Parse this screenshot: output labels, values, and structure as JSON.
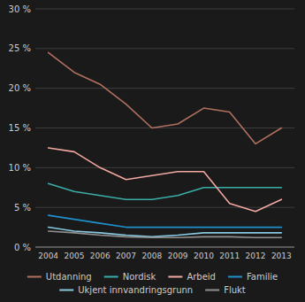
{
  "chart_data": {
    "type": "line",
    "x": [
      2004,
      2005,
      2006,
      2007,
      2008,
      2009,
      2010,
      2011,
      2012,
      2013
    ],
    "xlim": [
      2003.5,
      2013.5
    ],
    "xticks": [
      2004,
      2005,
      2006,
      2007,
      2008,
      2009,
      2010,
      2011,
      2012,
      2013
    ],
    "ylim": [
      0,
      30
    ],
    "yticks": [
      {
        "value": 0,
        "label": "0 %"
      },
      {
        "value": 5,
        "label": "5 %"
      },
      {
        "value": 10,
        "label": "10 %"
      },
      {
        "value": 15,
        "label": "15 %"
      },
      {
        "value": 20,
        "label": "20 %"
      },
      {
        "value": 25,
        "label": "25 %"
      },
      {
        "value": 30,
        "label": "30 %"
      }
    ],
    "grid": true,
    "legend": "bottom",
    "series": [
      {
        "name": "Utdanning",
        "color": "#b07060",
        "values": [
          24.5,
          22.0,
          20.5,
          18.0,
          15.0,
          15.5,
          17.5,
          17.0,
          13.0,
          15.0
        ]
      },
      {
        "name": "Nordisk",
        "color": "#3aada8",
        "values": [
          8.0,
          7.0,
          6.5,
          6.0,
          6.0,
          6.5,
          7.5,
          7.5,
          7.5,
          7.5
        ]
      },
      {
        "name": "Arbeid",
        "color": "#f0a8a0",
        "values": [
          12.5,
          12.0,
          10.0,
          8.5,
          9.0,
          9.5,
          9.5,
          5.5,
          4.5,
          6.0
        ]
      },
      {
        "name": "Familie",
        "color": "#2090cc",
        "values": [
          4.0,
          3.5,
          3.0,
          2.5,
          2.5,
          2.5,
          2.5,
          2.5,
          2.5,
          2.5
        ]
      },
      {
        "name": "Ukjent innvandringsgrunn",
        "color": "#88c8e0",
        "values": [
          2.5,
          2.0,
          1.8,
          1.5,
          1.3,
          1.5,
          1.8,
          1.8,
          1.8,
          1.8
        ]
      },
      {
        "name": "Flukt",
        "color": "#909090",
        "values": [
          2.0,
          1.8,
          1.5,
          1.3,
          1.2,
          1.2,
          1.3,
          1.3,
          1.2,
          1.2
        ]
      }
    ]
  }
}
